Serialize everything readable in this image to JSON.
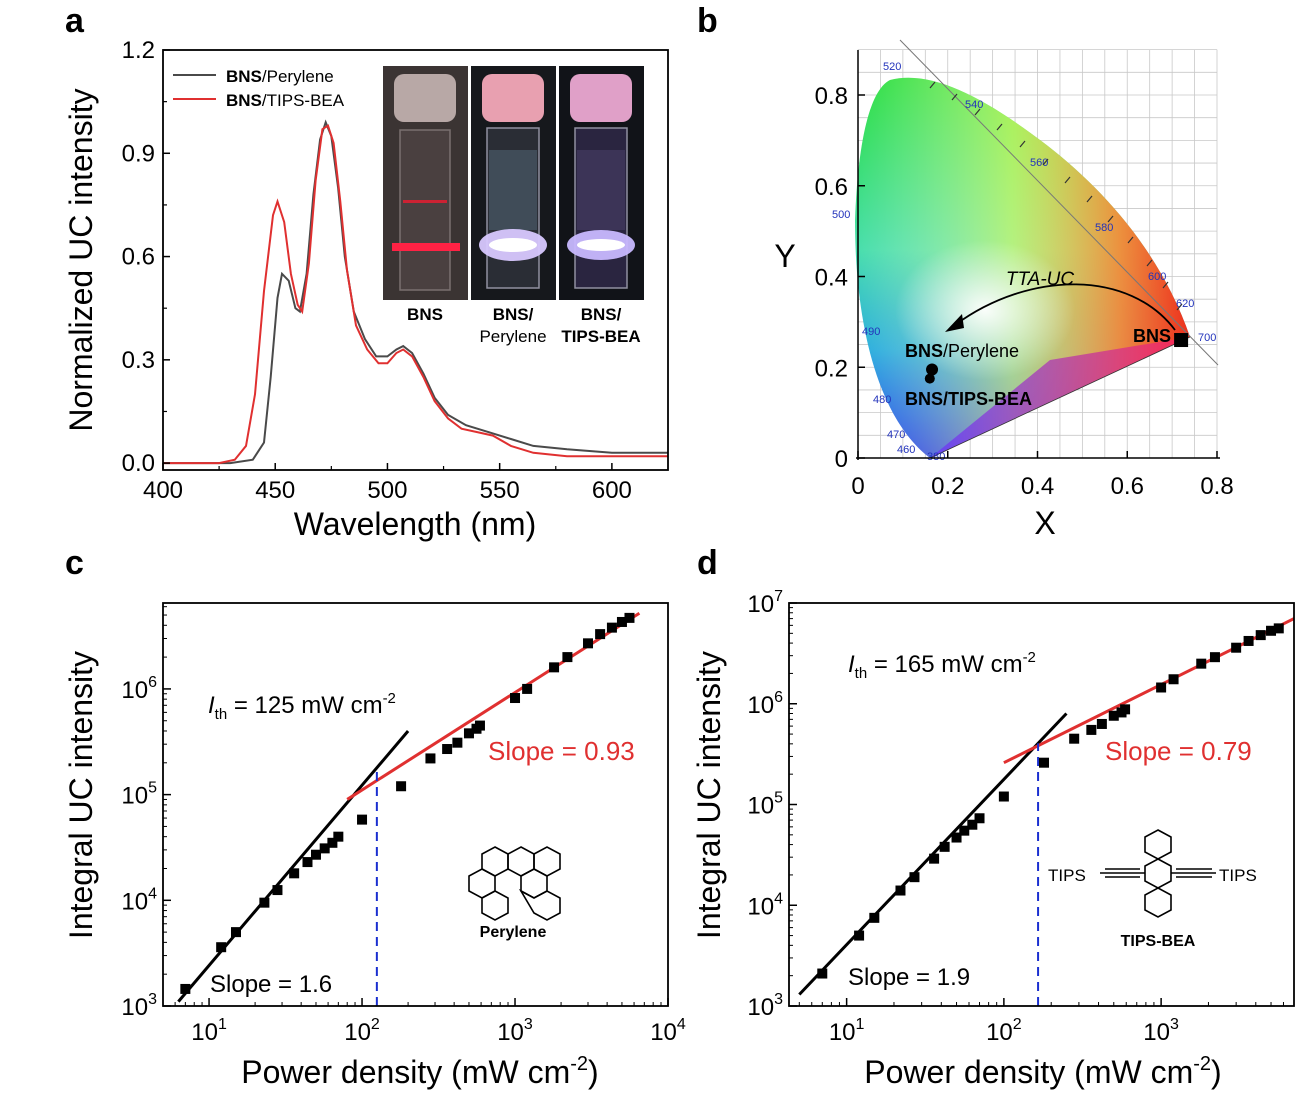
{
  "chart_data": [
    {
      "panel": "a",
      "type": "line",
      "xlabel": "Wavelength (nm)",
      "ylabel": "Normalized UC intensity",
      "xlim": [
        400,
        625
      ],
      "ylim": [
        -0.02,
        1.2
      ],
      "xticks": [
        "400",
        "450",
        "500",
        "550",
        "600"
      ],
      "yticks": [
        "0.0",
        "0.3",
        "0.6",
        "0.9",
        "1.2"
      ],
      "legend_placement": "top-left",
      "legend": [
        {
          "bold": "BNS",
          "rest": "/Perylene"
        },
        {
          "bold": "BNS",
          "rest": "/TIPS-BEA"
        }
      ],
      "series": [
        {
          "name": "BNS/Perylene",
          "color": "#4a4a4a",
          "points": [
            [
              400,
              0.0
            ],
            [
              430,
              0.0
            ],
            [
              440,
              0.01
            ],
            [
              445,
              0.06
            ],
            [
              448,
              0.25
            ],
            [
              451,
              0.48
            ],
            [
              453,
              0.55
            ],
            [
              456,
              0.53
            ],
            [
              459,
              0.45
            ],
            [
              461,
              0.44
            ],
            [
              464,
              0.55
            ],
            [
              467,
              0.78
            ],
            [
              470,
              0.94
            ],
            [
              472.5,
              0.99
            ],
            [
              475,
              0.95
            ],
            [
              478,
              0.8
            ],
            [
              481,
              0.6
            ],
            [
              485,
              0.44
            ],
            [
              490,
              0.36
            ],
            [
              495,
              0.31
            ],
            [
              500,
              0.31
            ],
            [
              504,
              0.33
            ],
            [
              507,
              0.34
            ],
            [
              511,
              0.32
            ],
            [
              516,
              0.26
            ],
            [
              521,
              0.19
            ],
            [
              527,
              0.14
            ],
            [
              535,
              0.11
            ],
            [
              545,
              0.09
            ],
            [
              555,
              0.07
            ],
            [
              565,
              0.05
            ],
            [
              580,
              0.04
            ],
            [
              600,
              0.03
            ],
            [
              625,
              0.03
            ]
          ]
        },
        {
          "name": "BNS/TIPS-BEA",
          "color": "#e03030",
          "points": [
            [
              400,
              0.0
            ],
            [
              425,
              0.0
            ],
            [
              432,
              0.01
            ],
            [
              437,
              0.05
            ],
            [
              441,
              0.2
            ],
            [
              445,
              0.5
            ],
            [
              449,
              0.72
            ],
            [
              451,
              0.76
            ],
            [
              454,
              0.7
            ],
            [
              457,
              0.55
            ],
            [
              460,
              0.46
            ],
            [
              462,
              0.44
            ],
            [
              465,
              0.58
            ],
            [
              468,
              0.82
            ],
            [
              471,
              0.97
            ],
            [
              473.5,
              0.98
            ],
            [
              476,
              0.93
            ],
            [
              479,
              0.76
            ],
            [
              482,
              0.56
            ],
            [
              486,
              0.4
            ],
            [
              491,
              0.33
            ],
            [
              496,
              0.29
            ],
            [
              500,
              0.29
            ],
            [
              504,
              0.32
            ],
            [
              507,
              0.33
            ],
            [
              511,
              0.31
            ],
            [
              516,
              0.25
            ],
            [
              521,
              0.18
            ],
            [
              527,
              0.13
            ],
            [
              533,
              0.1
            ],
            [
              540,
              0.09
            ],
            [
              547,
              0.08
            ],
            [
              555,
              0.05
            ],
            [
              565,
              0.03
            ],
            [
              580,
              0.02
            ],
            [
              600,
              0.02
            ],
            [
              625,
              0.02
            ]
          ]
        }
      ],
      "inset_labels": [
        {
          "l1": "BNS",
          "l2": ""
        },
        {
          "l1": "BNS/",
          "l2": "Perylene"
        },
        {
          "l1": "BNS/",
          "l2": "TIPS-BEA"
        }
      ]
    },
    {
      "panel": "b",
      "type": "scatter",
      "xlabel": "X",
      "ylabel": "Y",
      "xlim": [
        0,
        0.8
      ],
      "ylim": [
        0,
        0.9
      ],
      "xticks": [
        "0",
        "0.2",
        "0.4",
        "0.6",
        "0.8"
      ],
      "yticks": [
        "0",
        "0.2",
        "0.4",
        "0.6",
        "0.8"
      ],
      "wavelength_labels": [
        "520",
        "540",
        "560",
        "580",
        "600",
        "620",
        "700",
        "500",
        "490",
        "480",
        "470",
        "460",
        "380"
      ],
      "arrow_label": "TTA-UC",
      "points": [
        {
          "name": "BNS",
          "x": 0.72,
          "y": 0.26
        },
        {
          "name": "BNS/Perylene",
          "x": 0.165,
          "y": 0.195
        },
        {
          "name": "BNS/TIPS-BEA",
          "x": 0.16,
          "y": 0.175
        }
      ],
      "point_labels": [
        {
          "bold": "BNS",
          "rest": ""
        },
        {
          "bold": "BNS",
          "rest": "/Perylene"
        },
        {
          "bold": "BNS/TIPS-BEA",
          "rest": ""
        }
      ]
    },
    {
      "panel": "c",
      "type": "scatter",
      "xlabel_main": "Power density (mW cm",
      "xlabel_sup": "-2",
      "xlabel_end": ")",
      "ylabel": "Integral UC intensity",
      "x_scale": "log",
      "y_scale": "log",
      "xlim": [
        5,
        10000
      ],
      "ylim": [
        1000,
        6500000
      ],
      "xticks": [
        {
          "b": "10",
          "e": "1"
        },
        {
          "b": "10",
          "e": "2"
        },
        {
          "b": "10",
          "e": "3"
        },
        {
          "b": "10",
          "e": "4"
        }
      ],
      "yticks": [
        {
          "b": "10",
          "e": "3"
        },
        {
          "b": "10",
          "e": "4"
        },
        {
          "b": "10",
          "e": "5"
        },
        {
          "b": "10",
          "e": "6"
        }
      ],
      "points": [
        [
          7,
          1450
        ],
        [
          12,
          3600
        ],
        [
          15,
          5000
        ],
        [
          23,
          9500
        ],
        [
          28,
          12500
        ],
        [
          36,
          18000
        ],
        [
          44,
          23000
        ],
        [
          50,
          27000
        ],
        [
          57,
          31000
        ],
        [
          64,
          35000
        ],
        [
          70,
          40000
        ],
        [
          100,
          58000
        ],
        [
          180,
          120000
        ],
        [
          280,
          220000
        ],
        [
          360,
          270000
        ],
        [
          420,
          310000
        ],
        [
          500,
          380000
        ],
        [
          560,
          420000
        ],
        [
          590,
          450000
        ],
        [
          1000,
          820000
        ],
        [
          1200,
          1000000
        ],
        [
          1800,
          1600000
        ],
        [
          2200,
          2000000
        ],
        [
          3000,
          2700000
        ],
        [
          3600,
          3300000
        ],
        [
          4300,
          3800000
        ],
        [
          5000,
          4300000
        ],
        [
          5600,
          4700000
        ]
      ],
      "fits": [
        {
          "color": "#000000",
          "x": [
            6.3,
            200
          ],
          "y": [
            1100,
            400000
          ]
        },
        {
          "color": "#e03030",
          "x": [
            80,
            6500
          ],
          "y": [
            90000,
            5200000
          ]
        }
      ],
      "threshold_x": 125,
      "threshold_label": {
        "italic": "I",
        "sub": "th",
        "text": " = 125 mW cm",
        "sup": "-2"
      },
      "slope_labels": [
        {
          "text": "Slope = 1.6",
          "color": "#000000"
        },
        {
          "text": "Slope = 0.93",
          "color": "#e03030"
        }
      ],
      "molecule_label": "Perylene"
    },
    {
      "panel": "d",
      "type": "scatter",
      "xlabel_main": "Power density (mW cm",
      "xlabel_sup": "-2",
      "xlabel_end": ")",
      "ylabel": "Integral UC intensity",
      "x_scale": "log",
      "y_scale": "log",
      "xlim": [
        4.3,
        7000
      ],
      "ylim": [
        1000,
        10000000
      ],
      "xticks": [
        {
          "b": "10",
          "e": "1"
        },
        {
          "b": "10",
          "e": "2"
        },
        {
          "b": "10",
          "e": "3"
        }
      ],
      "yticks": [
        {
          "b": "10",
          "e": "3"
        },
        {
          "b": "10",
          "e": "4"
        },
        {
          "b": "10",
          "e": "5"
        },
        {
          "b": "10",
          "e": "6"
        },
        {
          "b": "10",
          "e": "7"
        }
      ],
      "points": [
        [
          7,
          2100
        ],
        [
          12,
          5000
        ],
        [
          15,
          7500
        ],
        [
          22,
          14000
        ],
        [
          27,
          19000
        ],
        [
          36,
          29000
        ],
        [
          42,
          38000
        ],
        [
          50,
          47000
        ],
        [
          56,
          55000
        ],
        [
          63,
          63000
        ],
        [
          70,
          73000
        ],
        [
          100,
          120000
        ],
        [
          180,
          260000
        ],
        [
          280,
          450000
        ],
        [
          360,
          550000
        ],
        [
          420,
          630000
        ],
        [
          500,
          760000
        ],
        [
          560,
          820000
        ],
        [
          590,
          880000
        ],
        [
          1000,
          1450000
        ],
        [
          1200,
          1750000
        ],
        [
          1800,
          2500000
        ],
        [
          2200,
          2900000
        ],
        [
          3000,
          3600000
        ],
        [
          3600,
          4200000
        ],
        [
          4300,
          4800000
        ],
        [
          5000,
          5300000
        ],
        [
          5600,
          5600000
        ]
      ],
      "fits": [
        {
          "color": "#000000",
          "x": [
            5,
            250
          ],
          "y": [
            1300,
            800000
          ]
        },
        {
          "color": "#e03030",
          "x": [
            100,
            7000
          ],
          "y": [
            260000,
            7000000
          ]
        }
      ],
      "threshold_x": 165,
      "threshold_label": {
        "italic": "I",
        "sub": "th",
        "text": " = 165 mW cm",
        "sup": "-2"
      },
      "slope_labels": [
        {
          "text": "Slope = 1.9",
          "color": "#000000"
        },
        {
          "text": "Slope = 0.79",
          "color": "#e03030"
        }
      ],
      "molecule_label": "TIPS-BEA",
      "molecule_substituents": [
        "TIPS",
        "TIPS"
      ]
    }
  ],
  "panel_letters": [
    "a",
    "b",
    "c",
    "d"
  ]
}
